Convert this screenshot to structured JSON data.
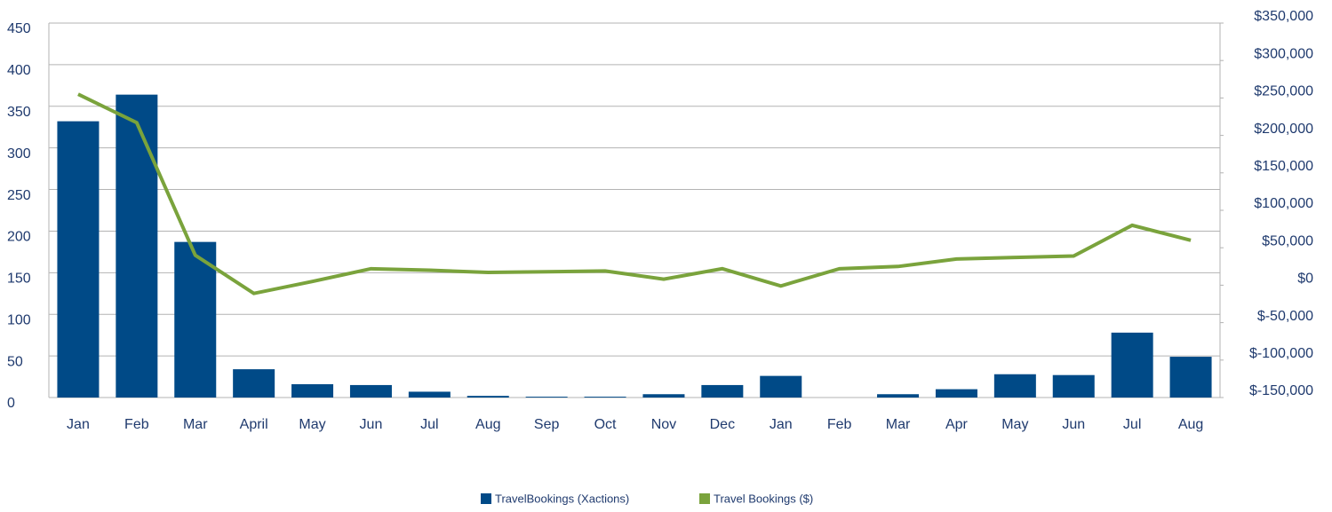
{
  "chart_data": {
    "type": "bar_line",
    "categories": [
      "Jan",
      "Feb",
      "Mar",
      "April",
      "May",
      "Jun",
      "Jul",
      "Aug",
      "Sep",
      "Oct",
      "Nov",
      "Dec",
      "Jan",
      "Feb",
      "Mar",
      "Apr",
      "May",
      "Jun",
      "Jul",
      "Aug"
    ],
    "series": [
      {
        "name": "TravelBookings (Xactions)",
        "color": "#004a87",
        "type": "bar",
        "axis": "y",
        "values": [
          332,
          364,
          187,
          34,
          16,
          15,
          7,
          2,
          1,
          1,
          4,
          15,
          26,
          0,
          4,
          10,
          28,
          27,
          78,
          49
        ]
      },
      {
        "name": "Travel Bookings ($)",
        "color": "#7aa33c",
        "type": "line",
        "axis": "y2",
        "values": [
          255000,
          217000,
          40000,
          -11000,
          5000,
          22000,
          20000,
          17000,
          18000,
          19000,
          8000,
          22000,
          -1000,
          22000,
          25000,
          35000,
          37000,
          39000,
          80000,
          60000
        ]
      }
    ],
    "ylim": [
      0,
      450
    ],
    "yticks": [
      0,
      50,
      100,
      150,
      200,
      250,
      300,
      350,
      400,
      450
    ],
    "y2lim": [
      -150000,
      350000
    ],
    "y2ticks": [
      {
        "value": -150000,
        "label": "$-150,000"
      },
      {
        "value": -100000,
        "label": "$-100,000"
      },
      {
        "value": -50000,
        "label": "$-50,000"
      },
      {
        "value": 0,
        "label": "$0"
      },
      {
        "value": 50000,
        "label": "$50,000"
      },
      {
        "value": 100000,
        "label": "$100,000"
      },
      {
        "value": 150000,
        "label": "$150,000"
      },
      {
        "value": 200000,
        "label": "$200,000"
      },
      {
        "value": 250000,
        "label": "$250,000"
      },
      {
        "value": 300000,
        "label": "$300,000"
      },
      {
        "value": 350000,
        "label": "$350,000"
      }
    ],
    "grid": true,
    "legend": "bottom"
  }
}
